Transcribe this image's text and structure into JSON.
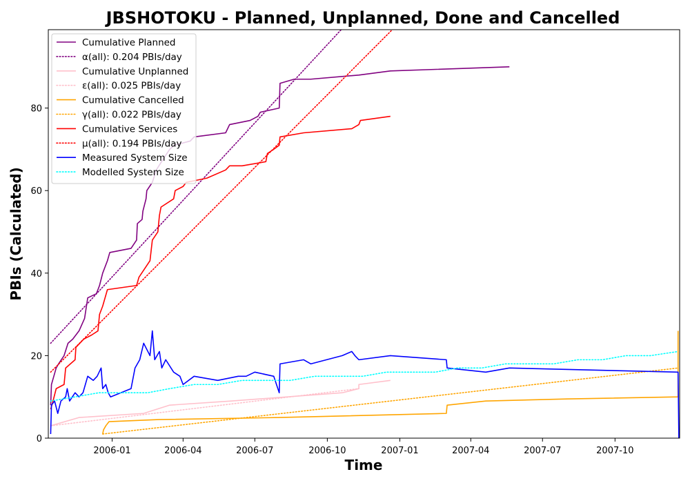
{
  "chart_data": {
    "type": "line",
    "title": "JBSHOTOKU - Planned, Unplanned, Done  and Cancelled",
    "xlabel": "Time",
    "ylabel": "PBIs (Calculated)",
    "x_ticks": [
      "2006-01",
      "2006-04",
      "2006-07",
      "2006-10",
      "2007-01",
      "2007-04",
      "2007-07",
      "2007-10"
    ],
    "y_ticks": [
      0,
      20,
      40,
      60,
      80
    ],
    "xlim": [
      "2005-10-12",
      "2007-12-22"
    ],
    "ylim": [
      0,
      99
    ],
    "legend_position": "upper-left",
    "grid": false,
    "series": [
      {
        "name": "Cumulative Planned",
        "color": "#800080",
        "style": "solid",
        "points": [
          [
            "2005-10-15",
            8
          ],
          [
            "2005-10-16",
            13
          ],
          [
            "2005-10-19",
            15
          ],
          [
            "2005-10-22",
            17
          ],
          [
            "2005-10-25",
            18
          ],
          [
            "2005-11-01",
            20
          ],
          [
            "2005-11-06",
            23
          ],
          [
            "2005-11-12",
            24
          ],
          [
            "2005-11-20",
            26
          ],
          [
            "2005-11-27",
            29
          ],
          [
            "2005-12-01",
            34
          ],
          [
            "2005-12-12",
            35
          ],
          [
            "2005-12-16",
            37
          ],
          [
            "2005-12-20",
            40
          ],
          [
            "2005-12-26",
            43
          ],
          [
            "2005-12-29",
            45
          ],
          [
            "2006-01-25",
            46
          ],
          [
            "2006-02-01",
            48
          ],
          [
            "2006-02-02",
            52
          ],
          [
            "2006-02-08",
            53
          ],
          [
            "2006-02-09",
            55
          ],
          [
            "2006-02-13",
            58
          ],
          [
            "2006-02-14",
            60
          ],
          [
            "2006-02-21",
            62
          ],
          [
            "2006-02-26",
            65
          ],
          [
            "2006-03-08",
            68
          ],
          [
            "2006-03-15",
            70
          ],
          [
            "2006-03-21",
            71
          ],
          [
            "2006-04-10",
            72
          ],
          [
            "2006-04-15",
            73
          ],
          [
            "2006-05-25",
            74
          ],
          [
            "2006-05-30",
            76
          ],
          [
            "2006-06-25",
            77
          ],
          [
            "2006-07-05",
            78
          ],
          [
            "2006-07-08",
            79
          ],
          [
            "2006-08-01",
            80
          ],
          [
            "2006-08-02",
            86
          ],
          [
            "2006-08-20",
            87
          ],
          [
            "2006-09-10",
            87
          ],
          [
            "2006-11-10",
            88
          ],
          [
            "2006-12-20",
            89
          ],
          [
            "2007-05-20",
            90
          ]
        ]
      },
      {
        "name": "α(all): 0.204 PBIs/day",
        "color": "#800080",
        "style": "dotted",
        "points": [
          [
            "2005-10-15",
            23
          ],
          [
            "2006-10-21",
            99.5
          ]
        ]
      },
      {
        "name": "Cumulative Unplanned",
        "color": "#ffc0cb",
        "style": "solid",
        "points": [
          [
            "2005-10-15",
            3
          ],
          [
            "2005-11-20",
            5
          ],
          [
            "2006-02-10",
            6
          ],
          [
            "2006-03-15",
            8
          ],
          [
            "2006-06-01",
            9
          ],
          [
            "2006-10-20",
            11
          ],
          [
            "2006-11-10",
            12
          ],
          [
            "2006-11-10",
            13
          ],
          [
            "2006-12-20",
            14
          ]
        ]
      },
      {
        "name": "ε(all): 0.025 PBIs/day",
        "color": "#ffc0cb",
        "style": "dotted",
        "points": [
          [
            "2005-10-15",
            3
          ],
          [
            "2006-11-10",
            12
          ]
        ]
      },
      {
        "name": "Cumulative Cancelled",
        "color": "#ffa500",
        "style": "solid",
        "points": [
          [
            "2005-12-20",
            1
          ],
          [
            "2005-12-21",
            2
          ],
          [
            "2005-12-24",
            3
          ],
          [
            "2005-12-28",
            4
          ],
          [
            "2006-03-01",
            4.5
          ],
          [
            "2006-08-01",
            5
          ],
          [
            "2007-03-01",
            6
          ],
          [
            "2007-03-02",
            8
          ],
          [
            "2007-04-20",
            9
          ],
          [
            "2007-08-01",
            9.5
          ],
          [
            "2007-12-20",
            10
          ],
          [
            "2007-12-20",
            26
          ]
        ]
      },
      {
        "name": "γ(all): 0.022 PBIs/day",
        "color": "#ffa500",
        "style": "dotted",
        "points": [
          [
            "2005-12-20",
            1
          ],
          [
            "2007-12-20",
            17
          ]
        ]
      },
      {
        "name": "Cumulative Services",
        "color": "#ff0000",
        "style": "solid",
        "points": [
          [
            "2005-10-15",
            7
          ],
          [
            "2005-10-18",
            9
          ],
          [
            "2005-10-22",
            12
          ],
          [
            "2005-11-01",
            13
          ],
          [
            "2005-11-03",
            17
          ],
          [
            "2005-11-15",
            19
          ],
          [
            "2005-11-16",
            22
          ],
          [
            "2005-11-26",
            24
          ],
          [
            "2005-12-06",
            25
          ],
          [
            "2005-12-14",
            26
          ],
          [
            "2005-12-16",
            30
          ],
          [
            "2005-12-20",
            32
          ],
          [
            "2005-12-26",
            36
          ],
          [
            "2006-02-01",
            37
          ],
          [
            "2006-02-04",
            39
          ],
          [
            "2006-02-18",
            43
          ],
          [
            "2006-02-21",
            48
          ],
          [
            "2006-02-28",
            50
          ],
          [
            "2006-03-02",
            54
          ],
          [
            "2006-03-04",
            56
          ],
          [
            "2006-03-20",
            58
          ],
          [
            "2006-03-22",
            60
          ],
          [
            "2006-04-01",
            61
          ],
          [
            "2006-04-05",
            62
          ],
          [
            "2006-05-01",
            63
          ],
          [
            "2006-05-25",
            65
          ],
          [
            "2006-05-30",
            66
          ],
          [
            "2006-06-15",
            66
          ],
          [
            "2006-07-15",
            67
          ],
          [
            "2006-07-17",
            69
          ],
          [
            "2006-07-25",
            70
          ],
          [
            "2006-08-01",
            71
          ],
          [
            "2006-08-02",
            73
          ],
          [
            "2006-09-01",
            74
          ],
          [
            "2006-11-01",
            75
          ],
          [
            "2006-11-10",
            76
          ],
          [
            "2006-11-12",
            77
          ],
          [
            "2006-12-20",
            78
          ]
        ]
      },
      {
        "name": "μ(all): 0.194 PBIs/day",
        "color": "#ff0000",
        "style": "dotted",
        "points": [
          [
            "2005-10-15",
            16
          ],
          [
            "2006-12-25",
            99.5
          ]
        ]
      },
      {
        "name": "Measured System Size",
        "color": "#0000ff",
        "style": "solid",
        "points": [
          [
            "2005-10-15",
            1
          ],
          [
            "2005-10-16",
            8
          ],
          [
            "2005-10-20",
            9
          ],
          [
            "2005-10-24",
            6
          ],
          [
            "2005-10-28",
            9
          ],
          [
            "2005-11-03",
            10
          ],
          [
            "2005-11-05",
            12
          ],
          [
            "2005-11-08",
            9
          ],
          [
            "2005-11-15",
            11
          ],
          [
            "2005-11-20",
            10
          ],
          [
            "2005-11-25",
            11
          ],
          [
            "2005-12-01",
            15
          ],
          [
            "2005-12-08",
            14
          ],
          [
            "2005-12-13",
            15
          ],
          [
            "2005-12-18",
            17
          ],
          [
            "2005-12-20",
            12
          ],
          [
            "2005-12-24",
            13
          ],
          [
            "2005-12-27",
            11
          ],
          [
            "2005-12-30",
            10
          ],
          [
            "2006-01-25",
            12
          ],
          [
            "2006-01-30",
            17
          ],
          [
            "2006-02-05",
            19
          ],
          [
            "2006-02-10",
            23
          ],
          [
            "2006-02-18",
            20
          ],
          [
            "2006-02-21",
            26
          ],
          [
            "2006-02-24",
            19
          ],
          [
            "2006-03-02",
            21
          ],
          [
            "2006-03-05",
            17
          ],
          [
            "2006-03-10",
            19
          ],
          [
            "2006-03-20",
            16
          ],
          [
            "2006-03-28",
            15
          ],
          [
            "2006-04-01",
            13
          ],
          [
            "2006-04-15",
            15
          ],
          [
            "2006-05-15",
            14
          ],
          [
            "2006-06-10",
            15
          ],
          [
            "2006-06-20",
            15
          ],
          [
            "2006-07-01",
            16
          ],
          [
            "2006-07-25",
            15
          ],
          [
            "2006-08-01",
            11
          ],
          [
            "2006-08-02",
            18
          ],
          [
            "2006-09-01",
            19
          ],
          [
            "2006-09-10",
            18
          ],
          [
            "2006-10-20",
            20
          ],
          [
            "2006-11-01",
            21
          ],
          [
            "2006-11-05",
            20
          ],
          [
            "2006-11-10",
            19
          ],
          [
            "2006-12-20",
            20
          ],
          [
            "2007-03-01",
            19
          ],
          [
            "2007-03-02",
            17
          ],
          [
            "2007-04-20",
            16
          ],
          [
            "2007-05-20",
            17
          ],
          [
            "2007-12-20",
            16
          ],
          [
            "2007-12-21",
            0
          ]
        ]
      },
      {
        "name": "Modelled System Size",
        "color": "#00ffff",
        "style": "dotted",
        "points": [
          [
            "2005-10-15",
            9
          ],
          [
            "2005-11-15",
            10
          ],
          [
            "2005-12-15",
            11
          ],
          [
            "2006-01-15",
            11
          ],
          [
            "2006-02-15",
            11
          ],
          [
            "2006-03-15",
            12
          ],
          [
            "2006-04-15",
            13
          ],
          [
            "2006-05-15",
            13
          ],
          [
            "2006-06-15",
            14
          ],
          [
            "2006-07-15",
            14
          ],
          [
            "2006-08-15",
            14
          ],
          [
            "2006-09-15",
            15
          ],
          [
            "2006-10-15",
            15
          ],
          [
            "2006-11-15",
            15
          ],
          [
            "2006-12-15",
            16
          ],
          [
            "2007-01-15",
            16
          ],
          [
            "2007-02-15",
            16
          ],
          [
            "2007-03-15",
            17
          ],
          [
            "2007-04-15",
            17
          ],
          [
            "2007-05-15",
            18
          ],
          [
            "2007-06-15",
            18
          ],
          [
            "2007-07-15",
            18
          ],
          [
            "2007-08-15",
            19
          ],
          [
            "2007-09-15",
            19
          ],
          [
            "2007-10-15",
            20
          ],
          [
            "2007-11-15",
            20
          ],
          [
            "2007-12-20",
            21
          ]
        ]
      }
    ]
  }
}
